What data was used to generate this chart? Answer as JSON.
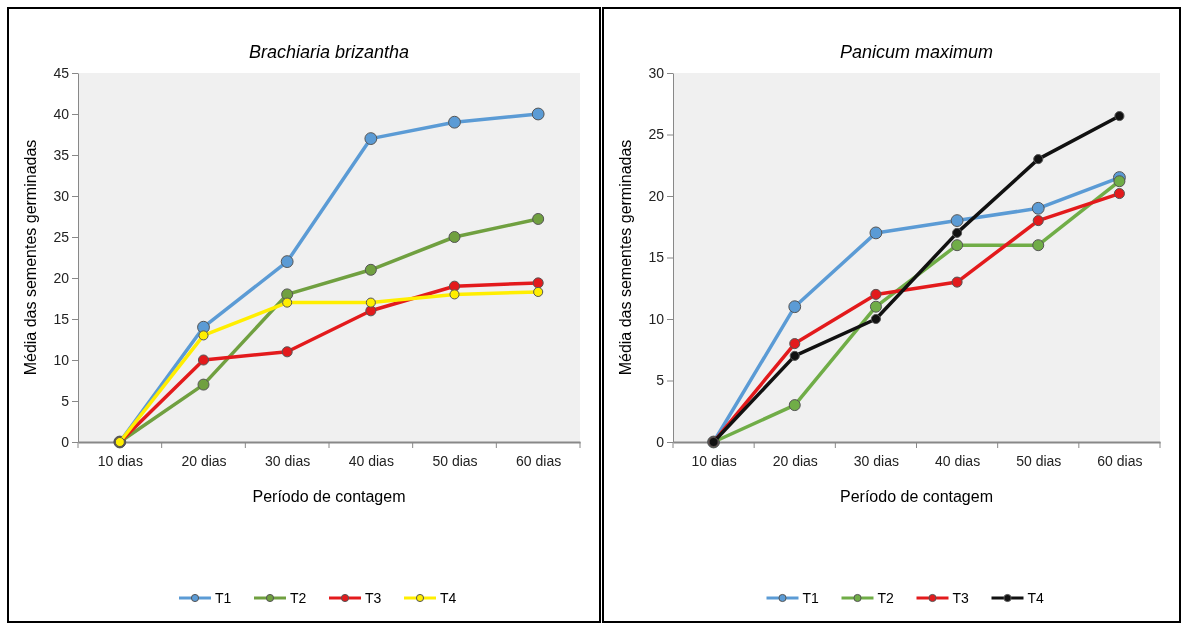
{
  "chart_data": [
    {
      "type": "line",
      "title": "Brachiaria brizantha",
      "xlabel": "Período de contagem",
      "ylabel": "Média das sementes germinadas",
      "categories": [
        "10 dias",
        "20 dias",
        "30 dias",
        "40 dias",
        "50 dias",
        "60 dias"
      ],
      "ylim": [
        0,
        45
      ],
      "yticks": [
        0,
        5,
        10,
        15,
        20,
        25,
        30,
        35,
        40,
        45
      ],
      "grid": false,
      "legend": "bottom",
      "marker": "circle",
      "series": [
        {
          "name": "T1",
          "color": "#5b9bd5",
          "values": [
            0,
            14,
            22,
            37,
            39,
            40
          ]
        },
        {
          "name": "T2",
          "color": "#70a040",
          "values": [
            0,
            7,
            18,
            21,
            25,
            27.2
          ]
        },
        {
          "name": "T3",
          "color": "#e31a1c",
          "values": [
            0,
            10,
            11,
            16,
            19,
            19.4
          ]
        },
        {
          "name": "T4",
          "color": "#ffee00",
          "values": [
            0,
            13,
            17,
            17,
            18,
            18.3
          ]
        }
      ]
    },
    {
      "type": "line",
      "title": "Panicum maximum",
      "xlabel": "Período de contagem",
      "ylabel": "Média das sementes germinadas",
      "categories": [
        "10 dias",
        "20 dias",
        "30 dias",
        "40 dias",
        "50 dias",
        "60 dias"
      ],
      "ylim": [
        0,
        30
      ],
      "yticks": [
        0,
        5,
        10,
        15,
        20,
        25,
        30
      ],
      "grid": false,
      "legend": "bottom",
      "marker": "circle",
      "series": [
        {
          "name": "T1",
          "color": "#5b9bd5",
          "values": [
            0,
            11,
            17,
            18,
            19,
            21.5
          ]
        },
        {
          "name": "T2",
          "color": "#70ad47",
          "values": [
            0,
            3,
            11,
            16,
            16,
            21.2
          ]
        },
        {
          "name": "T3",
          "color": "#e31a1c",
          "values": [
            0,
            8,
            12,
            13,
            18,
            20.2
          ]
        },
        {
          "name": "T4",
          "color": "#111111",
          "values": [
            0,
            7,
            10,
            17,
            23,
            26.5
          ]
        }
      ]
    }
  ]
}
